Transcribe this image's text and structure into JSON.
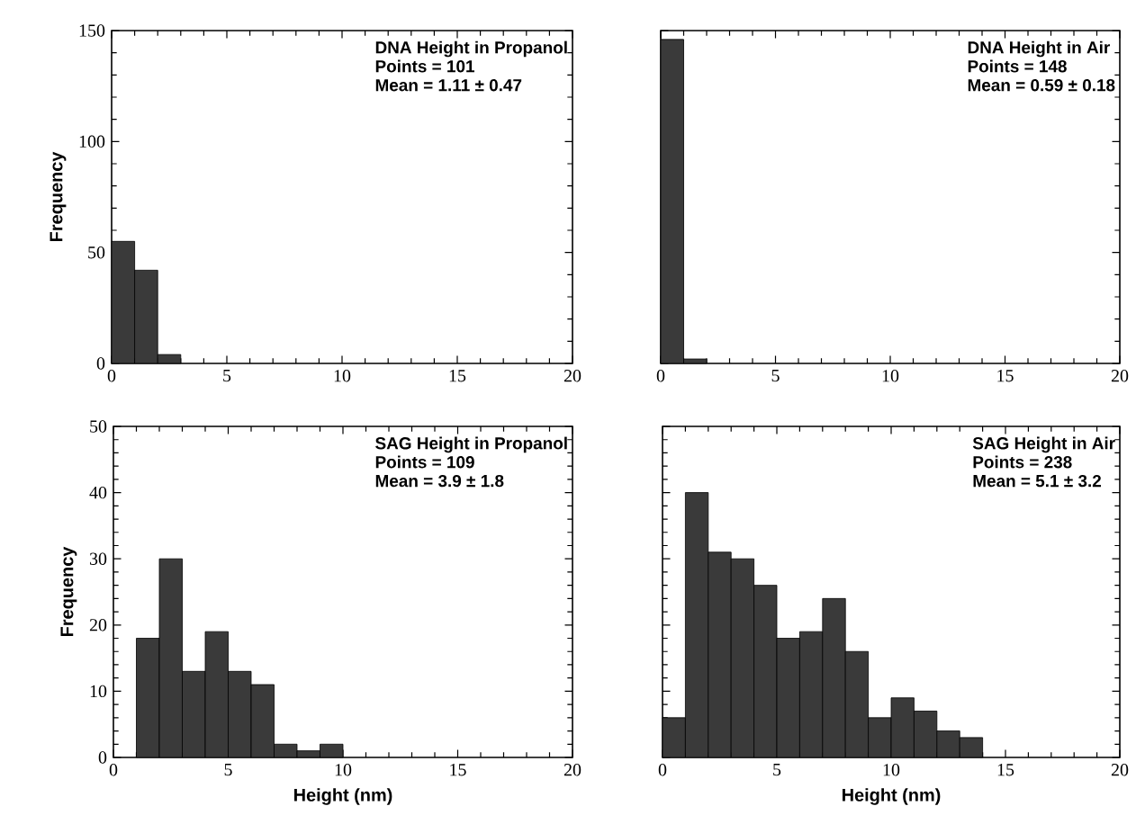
{
  "chart_data": [
    {
      "type": "histogram",
      "title": "DNA Height in Propanol",
      "annotations": [
        "Points = 101",
        "Mean = 1.11 ± 0.47"
      ],
      "ylabel": "Frequency",
      "bins": [
        0,
        1,
        2,
        3
      ],
      "values": [
        55,
        42,
        4
      ],
      "color": "#3a3a3a",
      "xlim": [
        0,
        20
      ],
      "xticks": [
        0,
        5,
        10,
        15,
        20
      ],
      "ylim": [
        0,
        150
      ],
      "yticks": [
        0,
        50,
        100,
        150
      ]
    },
    {
      "type": "histogram",
      "title": "DNA Height in Air",
      "annotations": [
        "Points = 148",
        "Mean = 0.59 ± 0.18"
      ],
      "bins": [
        0,
        1,
        2
      ],
      "values": [
        146,
        2
      ],
      "color": "#3a3a3a",
      "xlim": [
        0,
        20
      ],
      "xticks": [
        0,
        5,
        10,
        15,
        20
      ],
      "ylim": [
        0,
        150
      ],
      "yticks": [
        0,
        50,
        100,
        150
      ],
      "tick_labels": "x"
    },
    {
      "type": "histogram",
      "title": "SAG Height in Propanol",
      "annotations": [
        "Points = 109",
        "Mean = 3.9 ± 1.8"
      ],
      "xlabel": "Height (nm)",
      "ylabel": "Frequency",
      "bins": [
        1,
        2,
        3,
        4,
        5,
        6,
        7,
        8,
        9,
        10
      ],
      "values": [
        18,
        30,
        13,
        19,
        13,
        11,
        2,
        1,
        2
      ],
      "color": "#3a3a3a",
      "xlim": [
        0,
        20
      ],
      "xticks": [
        0,
        5,
        10,
        15,
        20
      ],
      "ylim": [
        0,
        50
      ],
      "yticks": [
        0,
        10,
        20,
        30,
        40,
        50
      ]
    },
    {
      "type": "histogram",
      "title": "SAG Height in Air",
      "annotations": [
        "Points = 238",
        "Mean = 5.1 ± 3.2"
      ],
      "xlabel": "Height (nm)",
      "bins": [
        0,
        1,
        2,
        3,
        4,
        5,
        6,
        7,
        8,
        9,
        10,
        11,
        12,
        13,
        14
      ],
      "values": [
        6,
        40,
        31,
        30,
        26,
        18,
        19,
        24,
        16,
        6,
        9,
        7,
        4,
        3
      ],
      "color": "#3a3a3a",
      "xlim": [
        0,
        20
      ],
      "xticks": [
        0,
        5,
        10,
        15,
        20
      ],
      "ylim": [
        0,
        50
      ],
      "yticks": [
        0,
        10,
        20,
        30,
        40,
        50
      ],
      "tick_labels": "x"
    }
  ]
}
